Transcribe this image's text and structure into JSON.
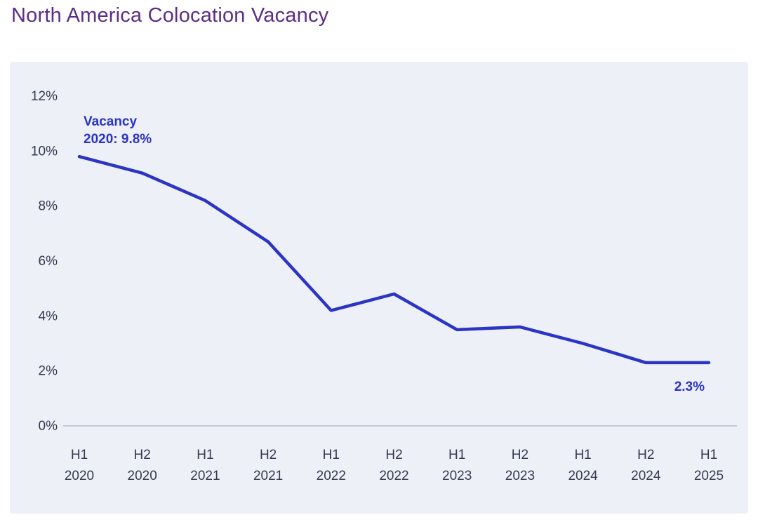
{
  "page": {
    "title": "North America Colocation Vacancy"
  },
  "colors": {
    "title": "#5C2D87",
    "line": "#2B34C3",
    "panel_bg": "#EDF0F7",
    "tick_text": "#333B4D",
    "axis_line": "#C5C9D3"
  },
  "chart_data": {
    "type": "line",
    "title": "North America Colocation Vacancy",
    "categories": [
      "H1 2020",
      "H2 2020",
      "H1 2021",
      "H2 2021",
      "H1 2022",
      "H2 2022",
      "H1 2023",
      "H2 2023",
      "H1 2024",
      "H2 2024",
      "H1 2025"
    ],
    "values": [
      9.8,
      9.2,
      8.2,
      6.7,
      4.2,
      4.8,
      3.5,
      3.6,
      3.0,
      2.3,
      2.3
    ],
    "series_name": "Vacancy",
    "xlabel": "",
    "ylabel": "",
    "ylim": [
      0,
      12
    ],
    "yticks": [
      0,
      2,
      4,
      6,
      8,
      10,
      12
    ],
    "ytick_suffix": "%",
    "grid": false,
    "legend_position": "none",
    "annotations": [
      {
        "lines": [
          "Vacancy",
          "2020: 9.8%"
        ],
        "at": "first"
      },
      {
        "lines": [
          "2.3%"
        ],
        "at": "last"
      }
    ]
  }
}
